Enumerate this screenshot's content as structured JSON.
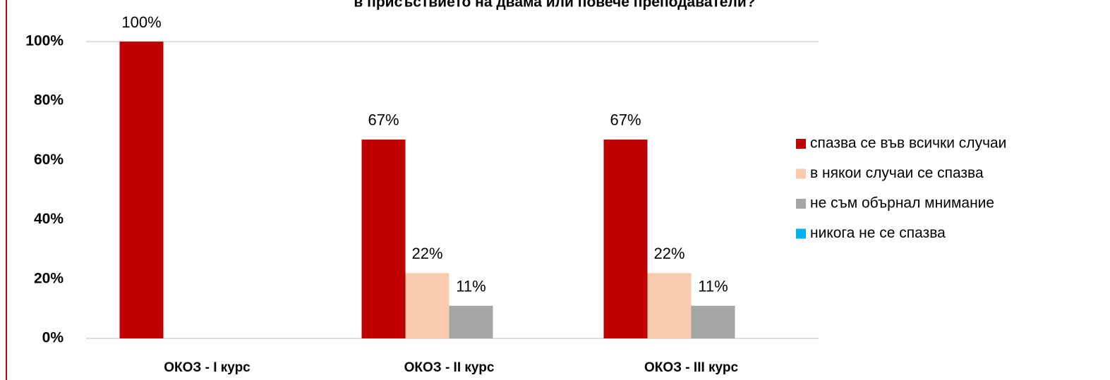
{
  "chart_data": {
    "type": "bar",
    "title": "в присъствието на двама или повече преподаватели?",
    "categories": [
      "ОКОЗ - I курс",
      "ОКОЗ - II курс",
      "ОКОЗ - III курс"
    ],
    "series": [
      {
        "name": "спазва се във всички случаи",
        "color": "#c00000",
        "values": [
          100,
          67,
          67
        ],
        "value_labels": [
          "100%",
          "67%",
          "67%"
        ]
      },
      {
        "name": "в някои случаи се спазва",
        "color": "#f8cbad",
        "values": [
          0,
          22,
          22
        ],
        "value_labels": [
          null,
          "22%",
          "22%"
        ]
      },
      {
        "name": "не съм обърнал мнимание",
        "color": "#a5a5a5",
        "values": [
          0,
          11,
          11
        ],
        "value_labels": [
          null,
          "11%",
          "11%"
        ]
      },
      {
        "name": "никога не се спазва",
        "color": "#00b0f0",
        "values": [
          0,
          0,
          0
        ],
        "value_labels": [
          null,
          null,
          null
        ]
      }
    ],
    "ylim": [
      0,
      100
    ],
    "yticks": [
      {
        "value": 0,
        "label": "0%"
      },
      {
        "value": 20,
        "label": "20%"
      },
      {
        "value": 40,
        "label": "40%"
      },
      {
        "value": 60,
        "label": "60%"
      },
      {
        "value": 80,
        "label": "80%"
      },
      {
        "value": 100,
        "label": "100%"
      }
    ],
    "grid": false,
    "legend": "right"
  }
}
